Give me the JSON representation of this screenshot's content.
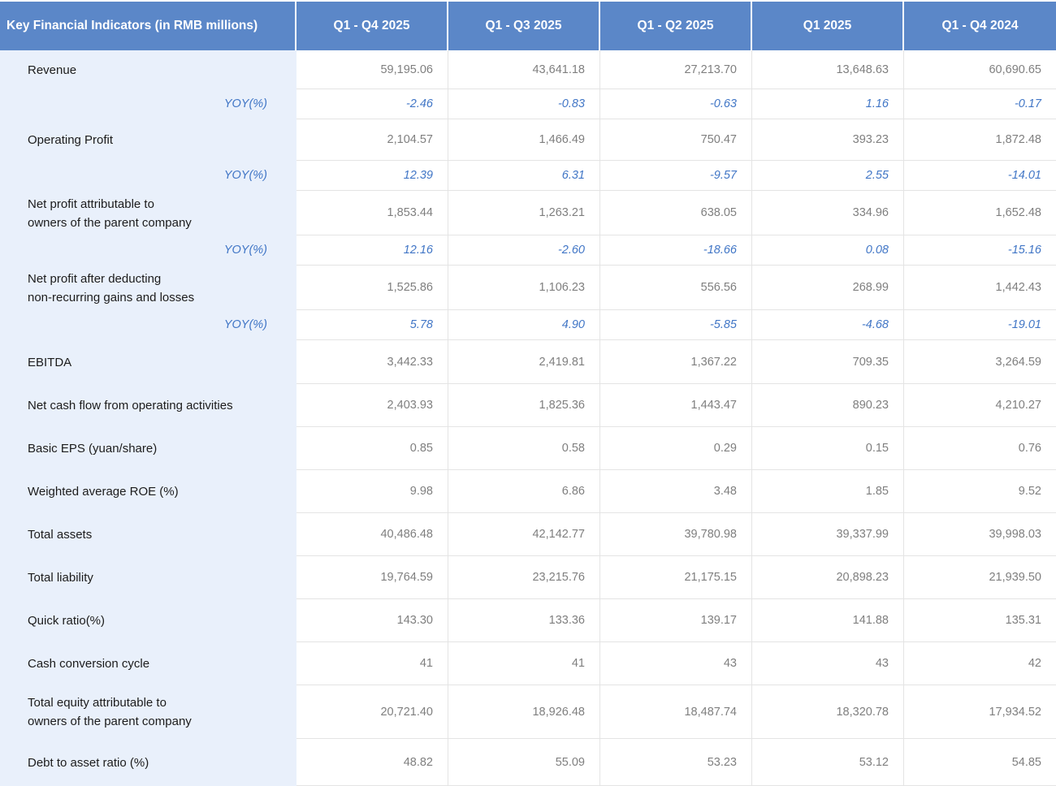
{
  "table": {
    "header": {
      "title": "Key Financial Indicators (in RMB millions)",
      "periods": [
        "Q1 - Q4 2025",
        "Q1 - Q3 2025",
        "Q1 - Q2 2025",
        "Q1 2025",
        "Q1 - Q4 2024"
      ]
    },
    "rows": [
      {
        "type": "value",
        "label": [
          "Revenue"
        ],
        "values": [
          "59,195.06",
          "43,641.18",
          "27,213.70",
          "13,648.63",
          "60,690.65"
        ]
      },
      {
        "type": "yoy",
        "label": [
          "YOY(%)"
        ],
        "values": [
          "-2.46",
          "-0.83",
          "-0.63",
          "1.16",
          "-0.17"
        ]
      },
      {
        "type": "value",
        "label": [
          "Operating Profit"
        ],
        "values": [
          "2,104.57",
          "1,466.49",
          "750.47",
          "393.23",
          "1,872.48"
        ]
      },
      {
        "type": "yoy",
        "label": [
          "YOY(%)"
        ],
        "values": [
          "12.39",
          "6.31",
          "-9.57",
          "2.55",
          "-14.01"
        ]
      },
      {
        "type": "value",
        "label": [
          "Net profit attributable to",
          "owners of the parent company"
        ],
        "values": [
          "1,853.44",
          "1,263.21",
          "638.05",
          "334.96",
          "1,652.48"
        ]
      },
      {
        "type": "yoy",
        "label": [
          "YOY(%)"
        ],
        "values": [
          "12.16",
          "-2.60",
          "-18.66",
          "0.08",
          "-15.16"
        ]
      },
      {
        "type": "value",
        "label": [
          "Net profit after deducting",
          "non-recurring gains and losses"
        ],
        "values": [
          "1,525.86",
          "1,106.23",
          "556.56",
          "268.99",
          "1,442.43"
        ]
      },
      {
        "type": "yoy",
        "label": [
          "YOY(%)"
        ],
        "values": [
          "5.78",
          "4.90",
          "-5.85",
          "-4.68",
          "-19.01"
        ]
      },
      {
        "type": "value",
        "label": [
          "EBITDA"
        ],
        "values": [
          "3,442.33",
          "2,419.81",
          "1,367.22",
          "709.35",
          "3,264.59"
        ]
      },
      {
        "type": "value",
        "label": [
          "Net cash flow from operating activities"
        ],
        "values": [
          "2,403.93",
          "1,825.36",
          "1,443.47",
          "890.23",
          "4,210.27"
        ]
      },
      {
        "type": "value",
        "label": [
          "Basic EPS (yuan/share)"
        ],
        "values": [
          "0.85",
          "0.58",
          "0.29",
          "0.15",
          "0.76"
        ]
      },
      {
        "type": "value",
        "label": [
          "Weighted average ROE (%)"
        ],
        "values": [
          "9.98",
          "6.86",
          "3.48",
          "1.85",
          "9.52"
        ]
      },
      {
        "type": "value",
        "label": [
          "Total assets"
        ],
        "values": [
          "40,486.48",
          "42,142.77",
          "39,780.98",
          "39,337.99",
          "39,998.03"
        ]
      },
      {
        "type": "value",
        "label": [
          "Total liability"
        ],
        "values": [
          "19,764.59",
          "23,215.76",
          "21,175.15",
          "20,898.23",
          "21,939.50"
        ]
      },
      {
        "type": "value",
        "label": [
          "Quick ratio(%)"
        ],
        "values": [
          "143.30",
          "133.36",
          "139.17",
          "141.88",
          "135.31"
        ]
      },
      {
        "type": "value",
        "label": [
          "Cash conversion cycle"
        ],
        "values": [
          "41",
          "41",
          "43",
          "43",
          "42"
        ]
      },
      {
        "type": "value",
        "label": [
          "Total equity attributable to",
          "owners of the parent company"
        ],
        "values": [
          "20,721.40",
          "18,926.48",
          "18,487.74",
          "18,320.78",
          "17,934.52"
        ]
      },
      {
        "type": "value",
        "label": [
          "Debt to asset ratio (%)"
        ],
        "values": [
          "48.82",
          "55.09",
          "53.23",
          "53.12",
          "54.85"
        ]
      }
    ],
    "colors": {
      "header_bg": "#5b87c8",
      "header_text": "#ffffff",
      "label_column_bg": "#e9f0fb",
      "label_text": "#1c1c1c",
      "value_text": "#7f7f7f",
      "yoy_text": "#4176c6",
      "gridline": "#e4e4e4"
    }
  }
}
